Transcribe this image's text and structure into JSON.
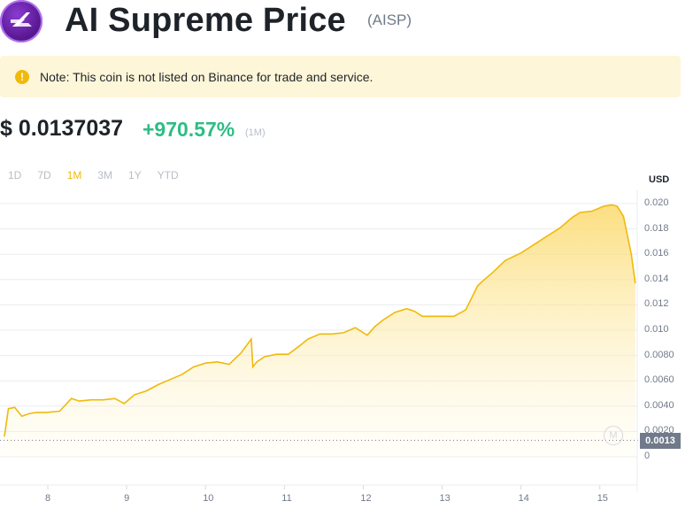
{
  "header": {
    "title": "AI Supreme Price",
    "ticker": "(AISP)"
  },
  "notice": {
    "text": "Note: This coin is not listed on Binance for trade and service."
  },
  "price": {
    "value": "$ 0.0137037",
    "change": "+970.57%",
    "period": "(1M)"
  },
  "tabs": [
    {
      "label": "1D"
    },
    {
      "label": "7D"
    },
    {
      "label": "1M"
    },
    {
      "label": "3M"
    },
    {
      "label": "1Y"
    },
    {
      "label": "YTD"
    }
  ],
  "active_tab": "1M",
  "colors": {
    "accent": "#f0b90b",
    "positive": "#2ebd85",
    "note_bg": "#fef6d8"
  },
  "chart_data": {
    "type": "area",
    "unit": "USD",
    "x_tick_labels": [
      "8",
      "9",
      "10",
      "11",
      "12",
      "13",
      "14",
      "15"
    ],
    "y_tick_labels": [
      "0.020",
      "0.018",
      "0.016",
      "0.014",
      "0.012",
      "0.010",
      "0.0080",
      "0.0060",
      "0.0040",
      "0.0020",
      "0"
    ],
    "ylim": [
      0,
      0.02
    ],
    "xlim": [
      7.45,
      15.45
    ],
    "current_value_label": "0.0013",
    "baseline_value": 0.0013,
    "series": [
      {
        "x": [
          7.45,
          7.5,
          7.58,
          7.67,
          7.76,
          7.85,
          7.98,
          8.15,
          8.3,
          8.4,
          8.55,
          8.7,
          8.85,
          8.97,
          9.1,
          9.25,
          9.4,
          9.55,
          9.7,
          9.85,
          10.0,
          10.15,
          10.3,
          10.45,
          10.58,
          10.6,
          10.65,
          10.75,
          10.9,
          11.05,
          11.2,
          11.3,
          11.45,
          11.6,
          11.75,
          11.9,
          12.05,
          12.15,
          12.25,
          12.4,
          12.55,
          12.65,
          12.75,
          12.85,
          13.0,
          13.15,
          13.3,
          13.45,
          13.5,
          13.65,
          13.8,
          14.0,
          14.2,
          14.35,
          14.5,
          14.65,
          14.75,
          14.9,
          15.05,
          15.15,
          15.22,
          15.3,
          15.4,
          15.45
        ],
        "values": [
          0.0016,
          0.0038,
          0.0039,
          0.0032,
          0.0034,
          0.0035,
          0.0035,
          0.0036,
          0.0046,
          0.0044,
          0.0045,
          0.0045,
          0.0046,
          0.0042,
          0.0049,
          0.0052,
          0.0057,
          0.0061,
          0.0065,
          0.0071,
          0.0074,
          0.0075,
          0.0073,
          0.0082,
          0.0093,
          0.0071,
          0.0075,
          0.0079,
          0.0081,
          0.0081,
          0.0088,
          0.0093,
          0.0097,
          0.0097,
          0.0098,
          0.0102,
          0.0096,
          0.0103,
          0.0108,
          0.0114,
          0.0117,
          0.0115,
          0.0111,
          0.0111,
          0.0111,
          0.0111,
          0.0116,
          0.0135,
          0.0138,
          0.0146,
          0.0155,
          0.0161,
          0.0169,
          0.0175,
          0.0181,
          0.0189,
          0.0193,
          0.0194,
          0.0198,
          0.0199,
          0.0198,
          0.019,
          0.016,
          0.0137
        ]
      }
    ]
  }
}
